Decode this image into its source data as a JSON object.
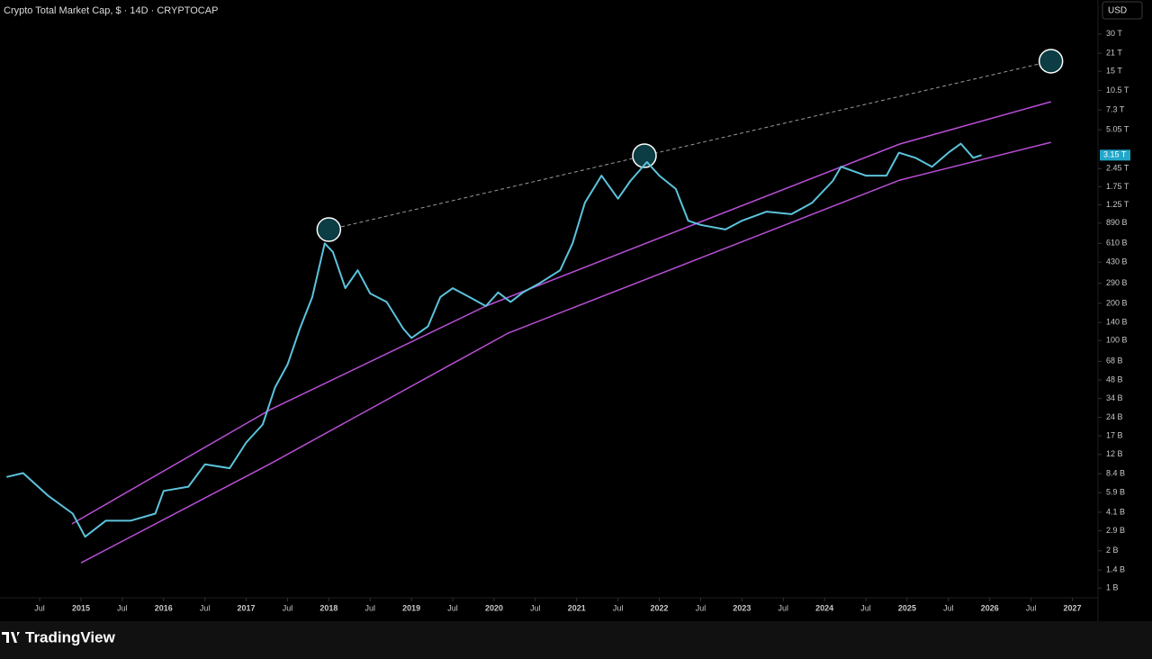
{
  "chart_data": {
    "type": "line",
    "title": "Crypto Total Market Cap, $ · 14D · CRYPTOCAP",
    "currency_button": "USD",
    "brand": "TradingView",
    "log_scale": true,
    "series": [
      {
        "color": "#5cc3dc",
        "x": [
          2014.1,
          2014.3,
          2014.6,
          2014.9,
          2015.05,
          2015.3,
          2015.6,
          2015.9,
          2016.0,
          2016.3,
          2016.5,
          2016.8,
          2017.0,
          2017.2,
          2017.35,
          2017.5,
          2017.65,
          2017.8,
          2017.95,
          2018.05,
          2018.2,
          2018.35,
          2018.5,
          2018.7,
          2018.9,
          2019.0,
          2019.2,
          2019.35,
          2019.5,
          2019.7,
          2019.9,
          2020.05,
          2020.2,
          2020.35,
          2020.55,
          2020.8,
          2020.95,
          2021.1,
          2021.3,
          2021.5,
          2021.65,
          2021.85,
          2022.0,
          2022.2,
          2022.35,
          2022.5,
          2022.8,
          2023.0,
          2023.3,
          2023.6,
          2023.85,
          2024.1,
          2024.2,
          2024.5,
          2024.75,
          2024.9,
          2025.1,
          2025.3,
          2025.5,
          2025.65,
          2025.8,
          2025.9
        ],
        "values": [
          7.9,
          8.5,
          5.6,
          4.0,
          2.6,
          3.5,
          3.5,
          4.0,
          6.1,
          6.6,
          10,
          9.3,
          15,
          21,
          42,
          64,
          125,
          225,
          610,
          520,
          265,
          370,
          240,
          205,
          125,
          105,
          130,
          225,
          265,
          225,
          190,
          245,
          205,
          245,
          290,
          370,
          610,
          1300,
          2150,
          1400,
          1950,
          2770,
          2150,
          1680,
          930,
          860,
          790,
          930,
          1100,
          1050,
          1300,
          1950,
          2540,
          2150,
          2150,
          3300,
          3000,
          2540,
          3300,
          3900,
          3000,
          3150
        ]
      }
    ],
    "bands": [
      {
        "color": "#b84fd6",
        "x": [
          2014.89,
          2017.29,
          2019.9,
          2022.4,
          2024.91,
          2026.74
        ],
        "values": [
          3.3,
          27.6,
          190,
          857,
          3870,
          8510
        ]
      },
      {
        "color": "#b84fd6",
        "x": [
          2015.0,
          2017.29,
          2020.17,
          2022.4,
          2024.91,
          2026.74
        ],
        "values": [
          1.6,
          10.1,
          115,
          438,
          1980,
          4000
        ]
      }
    ],
    "peak_line": {
      "color": "#9a9a9a",
      "x": [
        2018.0,
        2021.82,
        2026.74
      ],
      "values": [
        788,
        3115,
        18100
      ]
    },
    "last_price": {
      "value": 3150,
      "label": "3.15 T"
    },
    "xlim": [
      2014.02,
      2027.31
    ],
    "xticks": [
      {
        "value": 2014.5,
        "label": "Jul"
      },
      2015,
      {
        "value": 2015.5,
        "label": "Jul"
      },
      2016,
      {
        "value": 2016.5,
        "label": "Jul"
      },
      2017,
      {
        "value": 2017.5,
        "label": "Jul"
      },
      2018,
      {
        "value": 2018.5,
        "label": "Jul"
      },
      2019,
      {
        "value": 2019.5,
        "label": "Jul"
      },
      2020,
      {
        "value": 2020.5,
        "label": "Jul"
      },
      2021,
      {
        "value": 2021.5,
        "label": "Jul"
      },
      2022,
      {
        "value": 2022.5,
        "label": "Jul"
      },
      2023,
      {
        "value": 2023.5,
        "label": "Jul"
      },
      2024,
      {
        "value": 2024.5,
        "label": "Jul"
      },
      2025,
      {
        "value": 2025.5,
        "label": "Jul"
      },
      2026,
      {
        "value": 2026.5,
        "label": "Jul"
      },
      2027
    ],
    "ylim": [
      0.54,
      56500
    ],
    "yticks": [
      {
        "value": 30000,
        "label": "30 T"
      },
      {
        "value": 21000,
        "label": "21 T"
      },
      {
        "value": 15000,
        "label": "15 T"
      },
      {
        "value": 10500,
        "label": "10.5 T"
      },
      {
        "value": 7300,
        "label": "7.3 T"
      },
      {
        "value": 5050,
        "label": "5.05 T"
      },
      {
        "value": 2450,
        "label": "2.45 T"
      },
      {
        "value": 1750,
        "label": "1.75 T"
      },
      {
        "value": 1250,
        "label": "1.25 T"
      },
      {
        "value": 890,
        "label": "890 B"
      },
      {
        "value": 610,
        "label": "610 B"
      },
      {
        "value": 430,
        "label": "430 B"
      },
      {
        "value": 290,
        "label": "290 B"
      },
      {
        "value": 200,
        "label": "200 B"
      },
      {
        "value": 140,
        "label": "140 B"
      },
      {
        "value": 100,
        "label": "100 B"
      },
      {
        "value": 68,
        "label": "68 B"
      },
      {
        "value": 48,
        "label": "48 B"
      },
      {
        "value": 34,
        "label": "34 B"
      },
      {
        "value": 24,
        "label": "24 B"
      },
      {
        "value": 17,
        "label": "17 B"
      },
      {
        "value": 12,
        "label": "12 B"
      },
      {
        "value": 8.4,
        "label": "8.4 B"
      },
      {
        "value": 5.9,
        "label": "5.9 B"
      },
      {
        "value": 4.1,
        "label": "4.1 B"
      },
      {
        "value": 2.9,
        "label": "2.9 B"
      },
      {
        "value": 2,
        "label": "2 B"
      },
      {
        "value": 1.4,
        "label": "1.4 B"
      },
      {
        "value": 1,
        "label": "1 B"
      }
    ]
  }
}
